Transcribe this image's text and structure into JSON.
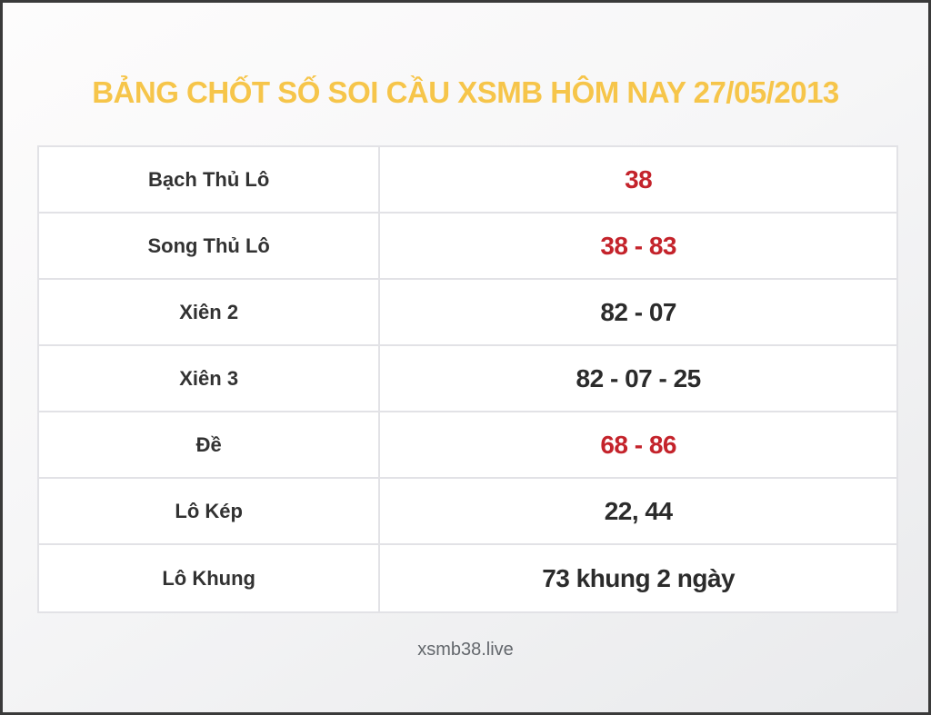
{
  "header": {
    "title": "BẢNG CHỐT SỐ SOI CẦU XSMB HÔM NAY 27/05/2013"
  },
  "table": {
    "rows": [
      {
        "label": "Bạch Thủ Lô",
        "value": "38",
        "highlight": true
      },
      {
        "label": "Song Thủ Lô",
        "value": "38 - 83",
        "highlight": true
      },
      {
        "label": "Xiên 2",
        "value": "82 - 07",
        "highlight": false
      },
      {
        "label": "Xiên 3",
        "value": "82 - 07 - 25",
        "highlight": false
      },
      {
        "label": "Đề",
        "value": "68 - 86",
        "highlight": true
      },
      {
        "label": "Lô Kép",
        "value": "22, 44",
        "highlight": false
      },
      {
        "label": "Lô Khung",
        "value": "73 khung 2 ngày",
        "highlight": false
      }
    ]
  },
  "footer": {
    "site": "xsmb38.live"
  },
  "colors": {
    "title_yellow": "#f6c54a",
    "value_red": "#c4232b",
    "text_dark": "#2e2e2e",
    "footer_gray": "#63676c",
    "frame_border": "#3a3a3a",
    "table_border": "#e2e2e6"
  }
}
